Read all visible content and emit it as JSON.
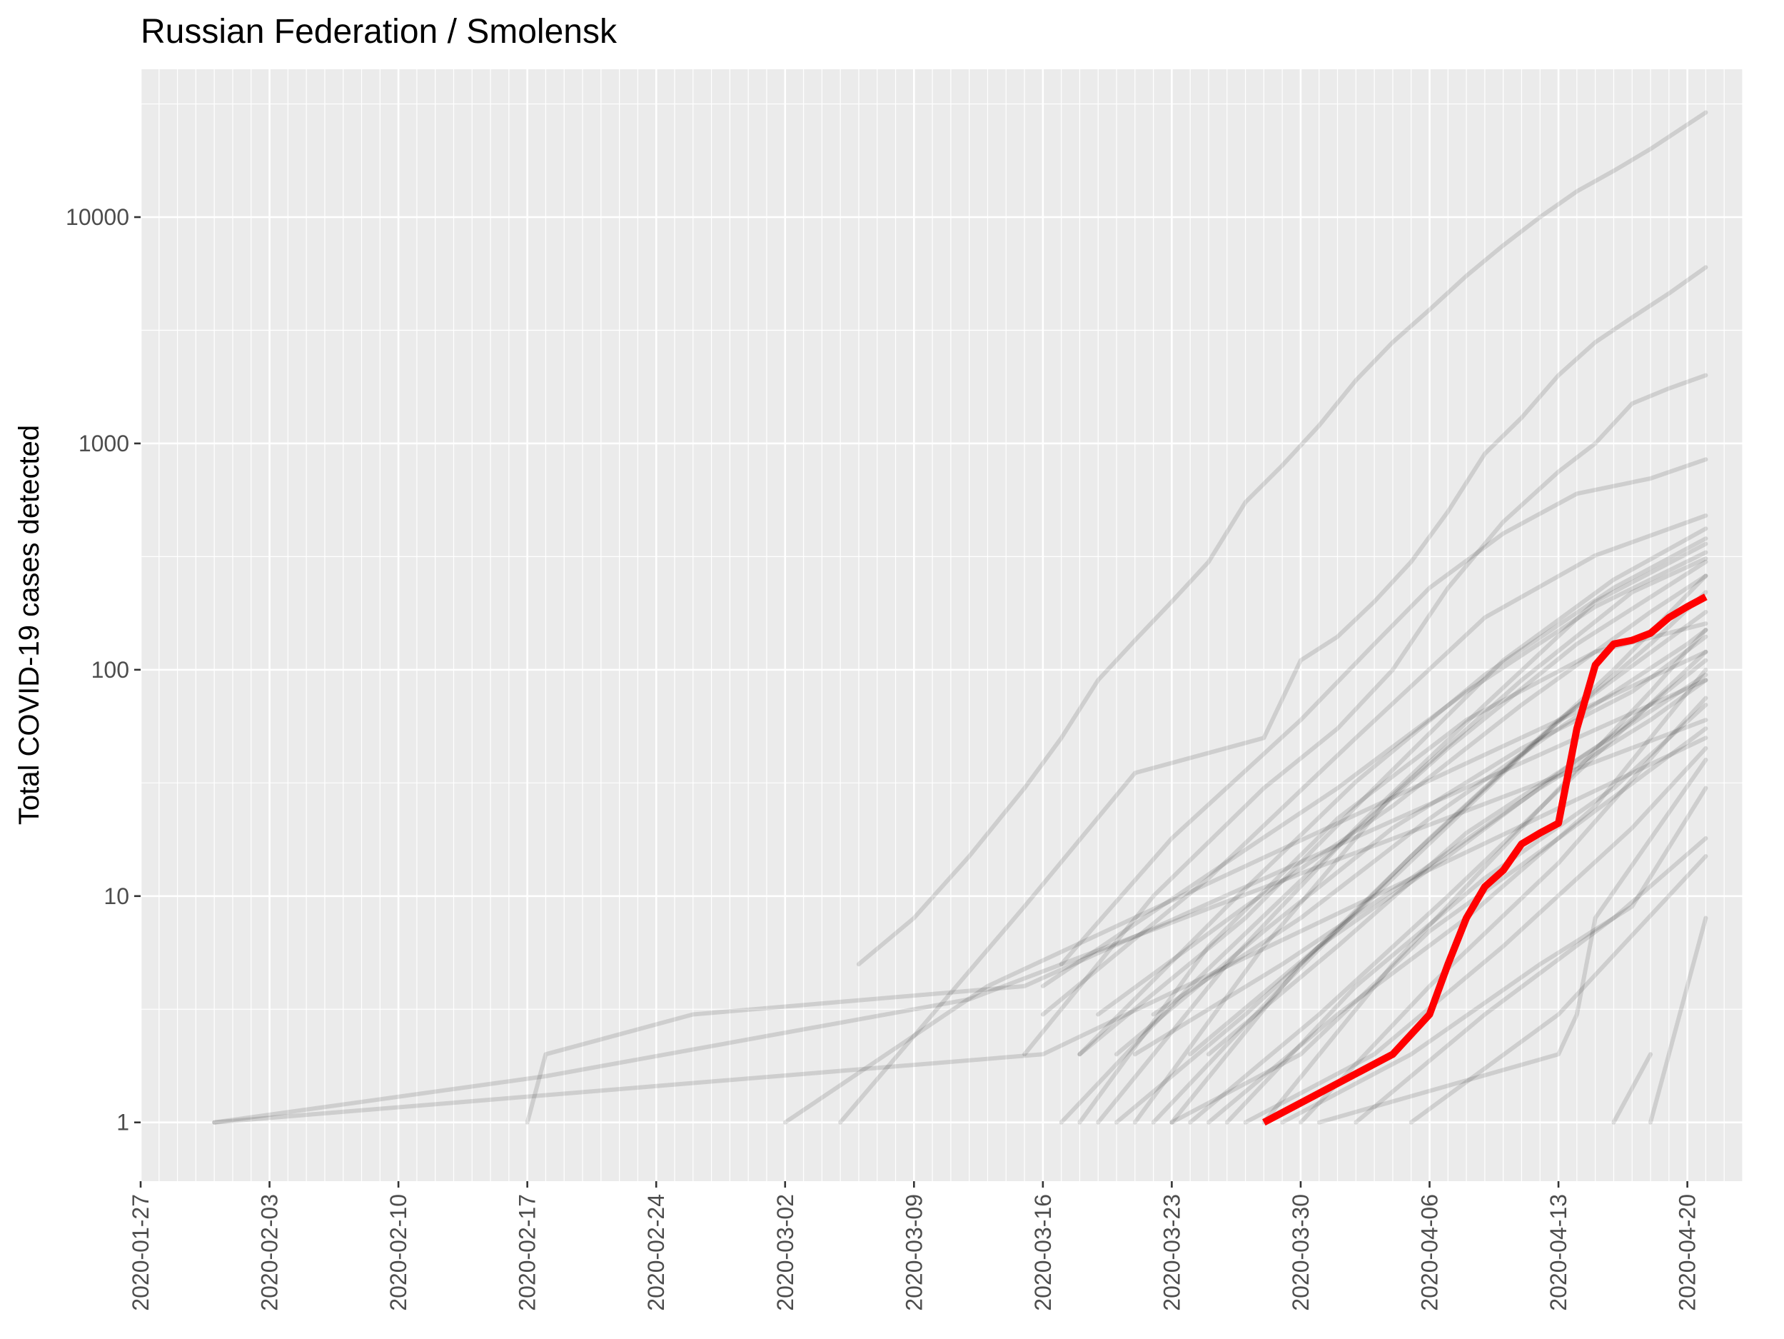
{
  "chart_data": {
    "type": "line",
    "title": "Russian Federation / Smolensk",
    "xlabel": "",
    "ylabel": "Total COVID-19 cases detected",
    "y_scale": "log10",
    "grid": true,
    "legend": "none",
    "x_range": [
      "2020-01-27",
      "2020-04-23"
    ],
    "y_range": [
      0.55,
      45000
    ],
    "x_ticks": [
      "2020-01-27",
      "2020-02-03",
      "2020-02-10",
      "2020-02-17",
      "2020-02-24",
      "2020-03-02",
      "2020-03-09",
      "2020-03-16",
      "2020-03-23",
      "2020-03-30",
      "2020-04-06",
      "2020-04-13",
      "2020-04-20"
    ],
    "y_ticks": [
      1,
      10,
      100,
      1000,
      10000
    ],
    "y_tick_labels": [
      "1",
      "10",
      "100",
      "1000",
      "10000"
    ],
    "colors": {
      "panel_background": "#ebebeb",
      "gridline": "#ffffff",
      "background_series": "#000000",
      "highlight": "#ff0000"
    },
    "highlight_series": {
      "name": "Smolensk",
      "points": [
        [
          "2020-03-28",
          1
        ],
        [
          "2020-04-04",
          2
        ],
        [
          "2020-04-06",
          3
        ],
        [
          "2020-04-07",
          5
        ],
        [
          "2020-04-08",
          8
        ],
        [
          "2020-04-09",
          11
        ],
        [
          "2020-04-10",
          13
        ],
        [
          "2020-04-11",
          17
        ],
        [
          "2020-04-12",
          19
        ],
        [
          "2020-04-13",
          21
        ],
        [
          "2020-04-14",
          55
        ],
        [
          "2020-04-15",
          105
        ],
        [
          "2020-04-16",
          130
        ],
        [
          "2020-04-17",
          135
        ],
        [
          "2020-04-18",
          145
        ],
        [
          "2020-04-19",
          170
        ],
        [
          "2020-04-20",
          190
        ],
        [
          "2020-04-21",
          210
        ]
      ]
    },
    "background_series": [
      {
        "points": [
          [
            "2020-01-31",
            1
          ],
          [
            "2020-02-18",
            1.6
          ],
          [
            "2020-03-12",
            3.5
          ],
          [
            "2020-04-21",
            60
          ]
        ]
      },
      {
        "points": [
          [
            "2020-01-31",
            1
          ],
          [
            "2020-03-16",
            2
          ],
          [
            "2020-04-21",
            50
          ]
        ]
      },
      {
        "points": [
          [
            "2020-02-17",
            1
          ],
          [
            "2020-02-18",
            2
          ],
          [
            "2020-02-26",
            3
          ],
          [
            "2020-03-15",
            4
          ],
          [
            "2020-04-21",
            90
          ]
        ]
      },
      {
        "points": [
          [
            "2020-03-02",
            1
          ],
          [
            "2020-03-13",
            4
          ],
          [
            "2020-04-21",
            120
          ]
        ]
      },
      {
        "points": [
          [
            "2020-03-06",
            5
          ],
          [
            "2020-03-09",
            8
          ],
          [
            "2020-03-12",
            15
          ],
          [
            "2020-03-15",
            30
          ],
          [
            "2020-03-17",
            50
          ],
          [
            "2020-03-19",
            90
          ],
          [
            "2020-03-21",
            135
          ],
          [
            "2020-03-23",
            200
          ],
          [
            "2020-03-25",
            300
          ],
          [
            "2020-03-27",
            550
          ],
          [
            "2020-03-29",
            800
          ],
          [
            "2020-03-31",
            1200
          ],
          [
            "2020-04-02",
            1900
          ],
          [
            "2020-04-04",
            2800
          ],
          [
            "2020-04-06",
            3900
          ],
          [
            "2020-04-08",
            5500
          ],
          [
            "2020-04-10",
            7500
          ],
          [
            "2020-04-12",
            10000
          ],
          [
            "2020-04-14",
            13000
          ],
          [
            "2020-04-16",
            16000
          ],
          [
            "2020-04-18",
            20000
          ],
          [
            "2020-04-21",
            29000
          ]
        ]
      },
      {
        "points": [
          [
            "2020-03-05",
            1
          ],
          [
            "2020-03-15",
            9
          ],
          [
            "2020-03-21",
            35
          ],
          [
            "2020-03-28",
            50
          ],
          [
            "2020-03-30",
            110
          ],
          [
            "2020-04-01",
            140
          ],
          [
            "2020-04-03",
            200
          ],
          [
            "2020-04-05",
            300
          ],
          [
            "2020-04-07",
            500
          ],
          [
            "2020-04-09",
            900
          ],
          [
            "2020-04-11",
            1300
          ],
          [
            "2020-04-13",
            2000
          ],
          [
            "2020-04-15",
            2800
          ],
          [
            "2020-04-17",
            3600
          ],
          [
            "2020-04-19",
            4600
          ],
          [
            "2020-04-21",
            6000
          ]
        ]
      },
      {
        "points": [
          [
            "2020-03-15",
            2
          ],
          [
            "2020-03-22",
            10
          ],
          [
            "2020-03-28",
            30
          ],
          [
            "2020-04-01",
            55
          ],
          [
            "2020-04-04",
            100
          ],
          [
            "2020-04-07",
            230
          ],
          [
            "2020-04-10",
            450
          ],
          [
            "2020-04-13",
            750
          ],
          [
            "2020-04-15",
            1000
          ],
          [
            "2020-04-17",
            1500
          ],
          [
            "2020-04-19",
            1750
          ],
          [
            "2020-04-21",
            2000
          ]
        ]
      },
      {
        "points": [
          [
            "2020-03-17",
            5
          ],
          [
            "2020-03-23",
            18
          ],
          [
            "2020-03-30",
            60
          ],
          [
            "2020-04-03",
            130
          ],
          [
            "2020-04-06",
            230
          ],
          [
            "2020-04-10",
            400
          ],
          [
            "2020-04-14",
            600
          ],
          [
            "2020-04-18",
            700
          ],
          [
            "2020-04-21",
            850
          ]
        ]
      },
      {
        "points": [
          [
            "2020-03-16",
            3
          ],
          [
            "2020-03-25",
            12
          ],
          [
            "2020-04-02",
            50
          ],
          [
            "2020-04-09",
            170
          ],
          [
            "2020-04-15",
            320
          ],
          [
            "2020-04-21",
            480
          ]
        ]
      },
      {
        "points": [
          [
            "2020-03-18",
            2
          ],
          [
            "2020-03-27",
            8
          ],
          [
            "2020-04-03",
            30
          ],
          [
            "2020-04-10",
            110
          ],
          [
            "2020-04-16",
            250
          ],
          [
            "2020-04-21",
            420
          ]
        ]
      },
      {
        "points": [
          [
            "2020-03-19",
            1
          ],
          [
            "2020-03-26",
            5
          ],
          [
            "2020-04-02",
            20
          ],
          [
            "2020-04-09",
            70
          ],
          [
            "2020-04-15",
            200
          ],
          [
            "2020-04-21",
            360
          ]
        ]
      },
      {
        "points": [
          [
            "2020-03-17",
            1
          ],
          [
            "2020-03-24",
            4
          ],
          [
            "2020-03-31",
            14
          ],
          [
            "2020-04-07",
            45
          ],
          [
            "2020-04-14",
            130
          ],
          [
            "2020-04-21",
            300
          ]
        ]
      },
      {
        "points": [
          [
            "2020-03-20",
            1
          ],
          [
            "2020-03-27",
            3
          ],
          [
            "2020-04-03",
            10
          ],
          [
            "2020-04-10",
            35
          ],
          [
            "2020-04-16",
            100
          ],
          [
            "2020-04-21",
            260
          ]
        ]
      },
      {
        "points": [
          [
            "2020-03-22",
            1
          ],
          [
            "2020-03-29",
            4
          ],
          [
            "2020-04-05",
            15
          ],
          [
            "2020-04-12",
            50
          ],
          [
            "2020-04-18",
            130
          ],
          [
            "2020-04-21",
            220
          ]
        ]
      },
      {
        "points": [
          [
            "2020-03-23",
            1
          ],
          [
            "2020-03-30",
            5
          ],
          [
            "2020-04-06",
            18
          ],
          [
            "2020-04-13",
            60
          ],
          [
            "2020-04-21",
            180
          ]
        ]
      },
      {
        "points": [
          [
            "2020-03-18",
            1
          ],
          [
            "2020-03-25",
            6
          ],
          [
            "2020-04-01",
            22
          ],
          [
            "2020-04-08",
            60
          ],
          [
            "2020-04-15",
            120
          ],
          [
            "2020-04-21",
            160
          ]
        ]
      },
      {
        "points": [
          [
            "2020-03-20",
            2
          ],
          [
            "2020-03-28",
            7
          ],
          [
            "2020-04-04",
            20
          ],
          [
            "2020-04-11",
            45
          ],
          [
            "2020-04-17",
            80
          ],
          [
            "2020-04-21",
            140
          ]
        ]
      },
      {
        "points": [
          [
            "2020-03-24",
            1
          ],
          [
            "2020-03-31",
            3
          ],
          [
            "2020-04-07",
            10
          ],
          [
            "2020-04-14",
            35
          ],
          [
            "2020-04-21",
            120
          ]
        ]
      },
      {
        "points": [
          [
            "2020-03-25",
            1
          ],
          [
            "2020-04-01",
            3
          ],
          [
            "2020-04-08",
            8
          ],
          [
            "2020-04-15",
            25
          ],
          [
            "2020-04-21",
            100
          ]
        ]
      },
      {
        "points": [
          [
            "2020-03-21",
            2
          ],
          [
            "2020-03-29",
            5
          ],
          [
            "2020-04-05",
            12
          ],
          [
            "2020-04-12",
            30
          ],
          [
            "2020-04-18",
            60
          ],
          [
            "2020-04-21",
            90
          ]
        ]
      },
      {
        "points": [
          [
            "2020-03-26",
            1
          ],
          [
            "2020-04-02",
            4
          ],
          [
            "2020-04-09",
            12
          ],
          [
            "2020-04-16",
            30
          ],
          [
            "2020-04-21",
            70
          ]
        ]
      },
      {
        "points": [
          [
            "2020-03-27",
            1
          ],
          [
            "2020-04-03",
            2
          ],
          [
            "2020-04-10",
            6
          ],
          [
            "2020-04-17",
            20
          ],
          [
            "2020-04-21",
            45
          ]
        ]
      },
      {
        "points": [
          [
            "2020-03-19",
            3
          ],
          [
            "2020-03-27",
            9
          ],
          [
            "2020-04-04",
            25
          ],
          [
            "2020-04-11",
            70
          ],
          [
            "2020-04-18",
            180
          ],
          [
            "2020-04-21",
            260
          ]
        ]
      },
      {
        "points": [
          [
            "2020-03-16",
            4
          ],
          [
            "2020-03-24",
            11
          ],
          [
            "2020-04-01",
            30
          ],
          [
            "2020-04-08",
            80
          ],
          [
            "2020-04-15",
            190
          ],
          [
            "2020-04-21",
            330
          ]
        ]
      },
      {
        "points": [
          [
            "2020-03-21",
            1
          ],
          [
            "2020-03-28",
            6
          ],
          [
            "2020-04-04",
            28
          ],
          [
            "2020-04-11",
            90
          ],
          [
            "2020-04-17",
            220
          ],
          [
            "2020-04-21",
            310
          ]
        ]
      },
      {
        "points": [
          [
            "2020-03-28",
            1
          ],
          [
            "2020-04-04",
            5
          ],
          [
            "2020-04-11",
            20
          ],
          [
            "2020-04-18",
            80
          ],
          [
            "2020-04-21",
            150
          ]
        ]
      },
      {
        "points": [
          [
            "2020-03-30",
            1
          ],
          [
            "2020-04-06",
            4
          ],
          [
            "2020-04-13",
            14
          ],
          [
            "2020-04-19",
            50
          ],
          [
            "2020-04-21",
            75
          ]
        ]
      },
      {
        "points": [
          [
            "2020-04-02",
            1
          ],
          [
            "2020-04-09",
            3
          ],
          [
            "2020-04-16",
            8
          ],
          [
            "2020-04-21",
            18
          ]
        ]
      },
      {
        "points": [
          [
            "2020-03-31",
            1
          ],
          [
            "2020-04-13",
            2
          ],
          [
            "2020-04-14",
            3
          ],
          [
            "2020-04-15",
            8
          ],
          [
            "2020-04-21",
            40
          ]
        ]
      },
      {
        "points": [
          [
            "2020-04-05",
            1
          ],
          [
            "2020-04-13",
            3
          ],
          [
            "2020-04-21",
            15
          ]
        ]
      },
      {
        "points": [
          [
            "2020-04-16",
            1
          ],
          [
            "2020-04-18",
            2
          ]
        ]
      },
      {
        "points": [
          [
            "2020-04-18",
            1
          ],
          [
            "2020-04-19",
            2
          ],
          [
            "2020-04-20",
            4
          ],
          [
            "2020-04-21",
            8
          ]
        ]
      },
      {
        "points": [
          [
            "2020-03-29",
            1
          ],
          [
            "2020-04-05",
            2
          ],
          [
            "2020-04-12",
            5
          ],
          [
            "2020-04-17",
            9
          ],
          [
            "2020-04-21",
            30
          ]
        ]
      },
      {
        "points": [
          [
            "2020-03-22",
            3
          ],
          [
            "2020-03-30",
            8
          ],
          [
            "2020-04-06",
            22
          ],
          [
            "2020-04-13",
            55
          ],
          [
            "2020-04-20",
            130
          ],
          [
            "2020-04-21",
            150
          ]
        ]
      },
      {
        "points": [
          [
            "2020-03-18",
            2
          ],
          [
            "2020-03-26",
            9
          ],
          [
            "2020-04-02",
            32
          ],
          [
            "2020-04-09",
            95
          ],
          [
            "2020-04-16",
            230
          ],
          [
            "2020-04-21",
            380
          ]
        ]
      },
      {
        "points": [
          [
            "2020-03-24",
            2
          ],
          [
            "2020-03-31",
            6
          ],
          [
            "2020-04-07",
            15
          ],
          [
            "2020-04-14",
            40
          ],
          [
            "2020-04-21",
            95
          ]
        ]
      },
      {
        "points": [
          [
            "2020-03-23",
            1
          ],
          [
            "2020-03-30",
            2
          ],
          [
            "2020-04-06",
            7
          ],
          [
            "2020-04-13",
            18
          ],
          [
            "2020-04-21",
            55
          ]
        ]
      },
      {
        "points": [
          [
            "2020-03-25",
            2
          ],
          [
            "2020-04-01",
            6
          ],
          [
            "2020-04-08",
            19
          ],
          [
            "2020-04-15",
            45
          ],
          [
            "2020-04-21",
            110
          ]
        ]
      }
    ]
  }
}
